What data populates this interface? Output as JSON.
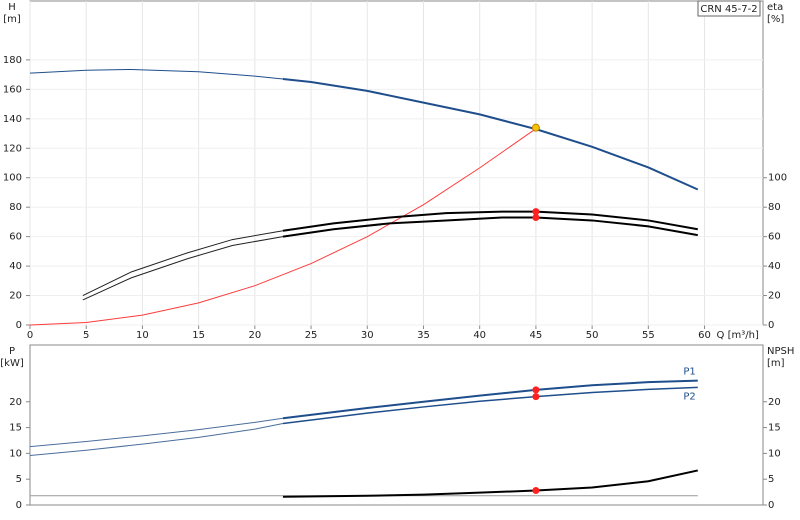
{
  "chart_data": [
    {
      "type": "line",
      "ylabel": "H",
      "yunit": "[m]",
      "y2label": "eta",
      "y2unit": "[%]",
      "model": "CRN 45-7-2",
      "xlabel": "Q [m³/h]",
      "xlim": [
        0,
        65.2
      ],
      "xticks": [
        0,
        5,
        10,
        15,
        20,
        25,
        30,
        35,
        40,
        45,
        50,
        55,
        60
      ],
      "ylim": [
        0,
        220
      ],
      "yticks": [
        0,
        20,
        40,
        60,
        80,
        100,
        120,
        140,
        160,
        180
      ],
      "y2lim": [
        0,
        220
      ],
      "y2ticks": [
        0,
        20,
        40,
        60,
        80,
        100
      ],
      "grid": true,
      "series": [
        {
          "color": "#1f4e8c",
          "width": 1,
          "x": [
            0,
            5,
            9,
            15,
            20,
            22.5
          ],
          "values": [
            171,
            173,
            173.5,
            172,
            169,
            167
          ]
        },
        {
          "color": "#1f4e8c",
          "width": 2,
          "x": [
            22.5,
            25,
            30,
            35,
            40,
            45,
            50,
            55,
            59.4
          ],
          "values": [
            167,
            165,
            159,
            151,
            143,
            133,
            121,
            107,
            92
          ]
        },
        {
          "color": "#ff3b3b",
          "width": 1,
          "x": [
            0,
            5,
            10,
            15,
            20,
            25,
            30,
            35,
            40,
            45
          ],
          "values": [
            0,
            1.7,
            6.7,
            15,
            26.7,
            41.7,
            60,
            81.7,
            106.7,
            133.3
          ]
        },
        {
          "color": "#222222",
          "width": 1,
          "axis": "y2",
          "x": [
            4.7,
            9,
            14,
            18,
            22.5
          ],
          "values": [
            20,
            36,
            49,
            58,
            64
          ]
        },
        {
          "color": "#000000",
          "width": 2,
          "axis": "y2",
          "x": [
            22.5,
            27,
            32,
            37,
            42,
            45,
            50,
            55,
            59.4
          ],
          "values": [
            64,
            69,
            73,
            76,
            77,
            77,
            75,
            71,
            65
          ]
        },
        {
          "color": "#222222",
          "width": 1,
          "axis": "y2",
          "x": [
            4.7,
            9,
            14,
            18,
            22.5
          ],
          "values": [
            17,
            32,
            45,
            54,
            60
          ]
        },
        {
          "color": "#000000",
          "width": 2,
          "axis": "y2",
          "x": [
            22.5,
            27,
            32,
            37,
            42,
            45,
            50,
            55,
            59.4
          ],
          "values": [
            60,
            65,
            69,
            71,
            73,
            73,
            71,
            67,
            61
          ]
        }
      ],
      "points": [
        {
          "x": 45,
          "y": 134,
          "color": "#f5c400"
        },
        {
          "x": 45,
          "y": 77,
          "color": "#ff2020",
          "axis": "y2"
        },
        {
          "x": 45,
          "y": 73,
          "color": "#ff2020",
          "axis": "y2"
        }
      ]
    },
    {
      "type": "line",
      "ylabel": "P",
      "yunit": "[kW]",
      "y2label": "NPSH",
      "y2unit": "[m]",
      "xlim": [
        0,
        65.2
      ],
      "ylim": [
        0,
        31
      ],
      "yticks": [
        0,
        5,
        10,
        15,
        20
      ],
      "y2lim": [
        0,
        31
      ],
      "y2ticks": [
        0,
        5,
        10,
        15,
        20
      ],
      "grid": false,
      "series": [
        {
          "color": "#4a6e9c",
          "width": 1,
          "x": [
            0,
            5,
            10,
            15,
            20,
            22.5
          ],
          "values": [
            11.3,
            12.3,
            13.4,
            14.6,
            16,
            16.8
          ]
        },
        {
          "name": "P1",
          "color": "#1f4e8c",
          "width": 2,
          "x": [
            22.5,
            30,
            35,
            40,
            45,
            50,
            55,
            59.4
          ],
          "values": [
            16.8,
            18.8,
            20,
            21.2,
            22.3,
            23.2,
            23.8,
            24.1
          ]
        },
        {
          "color": "#4a6e9c",
          "width": 1,
          "x": [
            0,
            5,
            10,
            15,
            20,
            22.5
          ],
          "values": [
            9.6,
            10.6,
            11.8,
            13.1,
            14.7,
            15.8
          ]
        },
        {
          "name": "P2",
          "color": "#1f4e8c",
          "width": 1.5,
          "x": [
            22.5,
            30,
            35,
            40,
            45,
            50,
            55,
            59.4
          ],
          "values": [
            15.8,
            17.8,
            19,
            20.1,
            21,
            21.8,
            22.4,
            22.8
          ]
        },
        {
          "color": "#999999",
          "width": 1,
          "axis": "y2",
          "x": [
            0,
            59.4
          ],
          "values": [
            1.8,
            1.8
          ]
        },
        {
          "color": "#000000",
          "width": 2,
          "axis": "y2",
          "x": [
            22.5,
            30,
            35,
            40,
            45,
            50,
            55,
            59.4
          ],
          "values": [
            1.6,
            1.8,
            2.0,
            2.4,
            2.8,
            3.4,
            4.6,
            6.7
          ]
        }
      ],
      "points": [
        {
          "x": 45,
          "y": 22.3,
          "color": "#ff2020"
        },
        {
          "x": 45,
          "y": 21,
          "color": "#ff2020"
        },
        {
          "x": 45,
          "y": 2.8,
          "color": "#ff2020",
          "axis": "y2"
        }
      ]
    }
  ]
}
